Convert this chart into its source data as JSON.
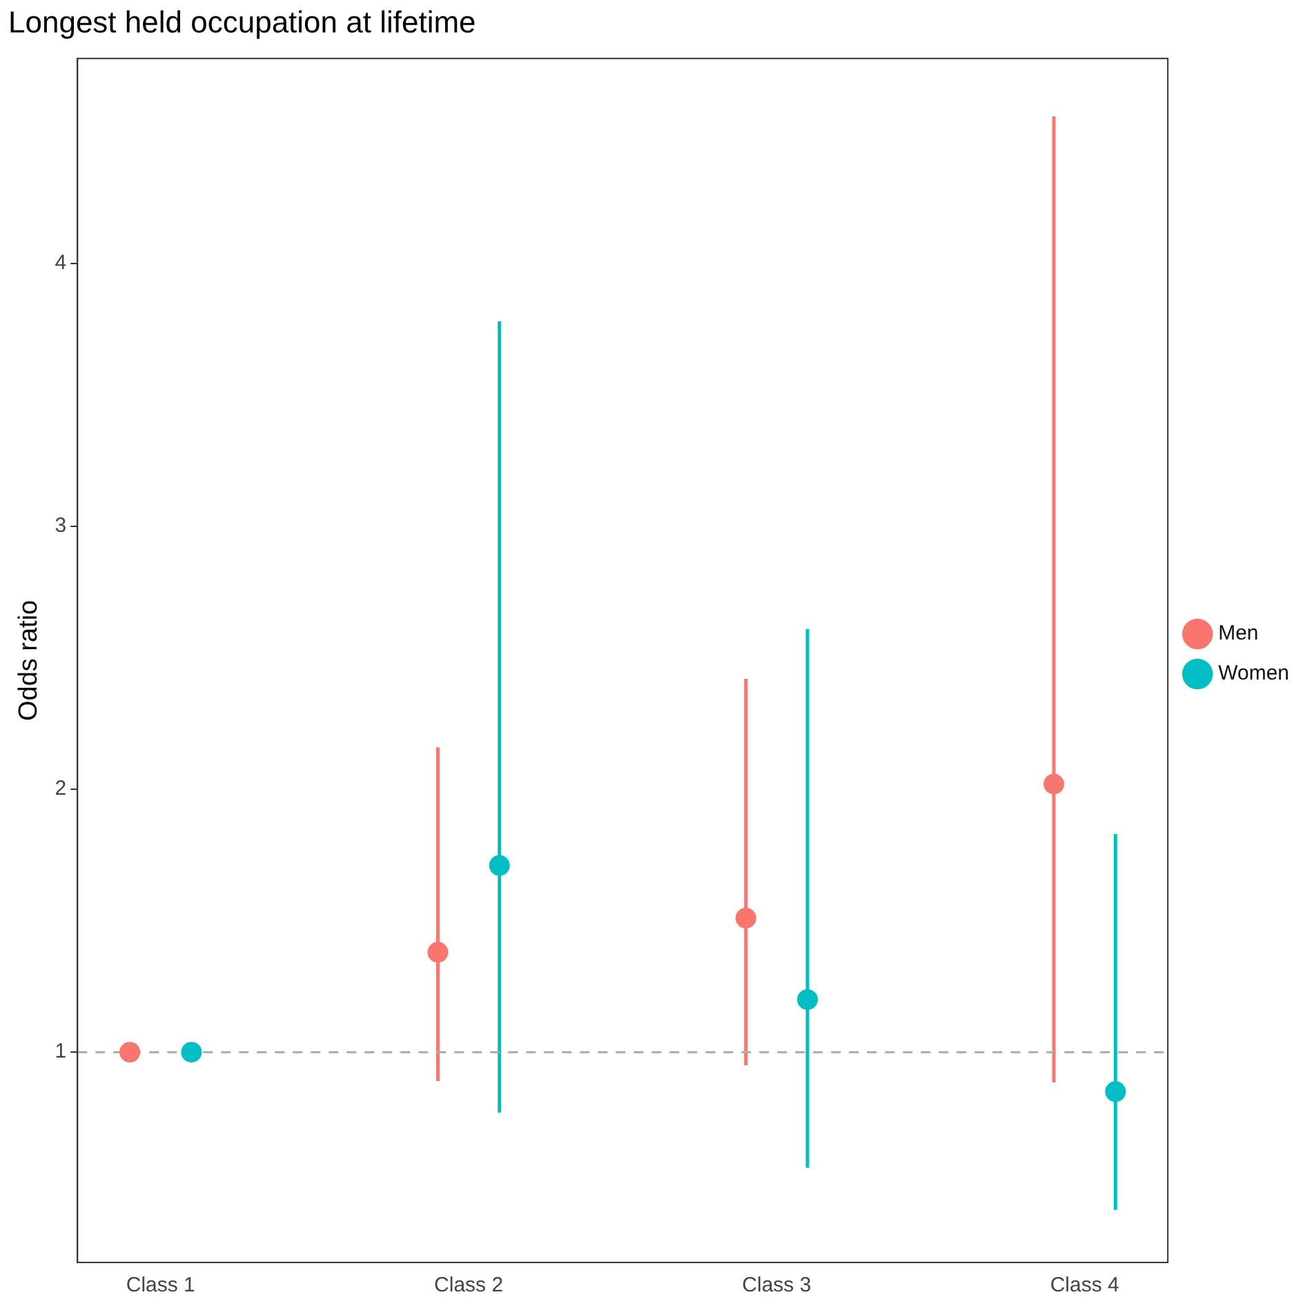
{
  "chart_data": {
    "type": "scatter",
    "title": "Longest held occupation at lifetime",
    "ylabel": "Odds ratio",
    "categories": [
      "Class 1",
      "Class 2",
      "Class 3",
      "Class 4"
    ],
    "series": [
      {
        "name": "Men",
        "color": "#f8766d",
        "values": [
          1,
          1.38,
          1.51,
          2.02
        ],
        "errors": [
          null,
          [
            0.89,
            2.16
          ],
          [
            0.95,
            2.42
          ],
          [
            0.885,
            4.56
          ]
        ]
      },
      {
        "name": "Women",
        "color": "#00bfc4",
        "values": [
          1,
          1.71,
          1.2,
          0.85
        ],
        "errors": [
          null,
          [
            0.77,
            3.78
          ],
          [
            0.56,
            2.61
          ],
          [
            0.4,
            1.83
          ]
        ]
      }
    ],
    "ylim": [
      0.2,
      4.78
    ],
    "yticks": [
      1,
      2,
      3,
      4
    ],
    "grid": false,
    "legend": "right",
    "marker": "circle",
    "ref_lines": [
      {
        "axis": "y",
        "value": 1,
        "color": "#aaaaaa",
        "line_style": "dashed"
      }
    ]
  }
}
